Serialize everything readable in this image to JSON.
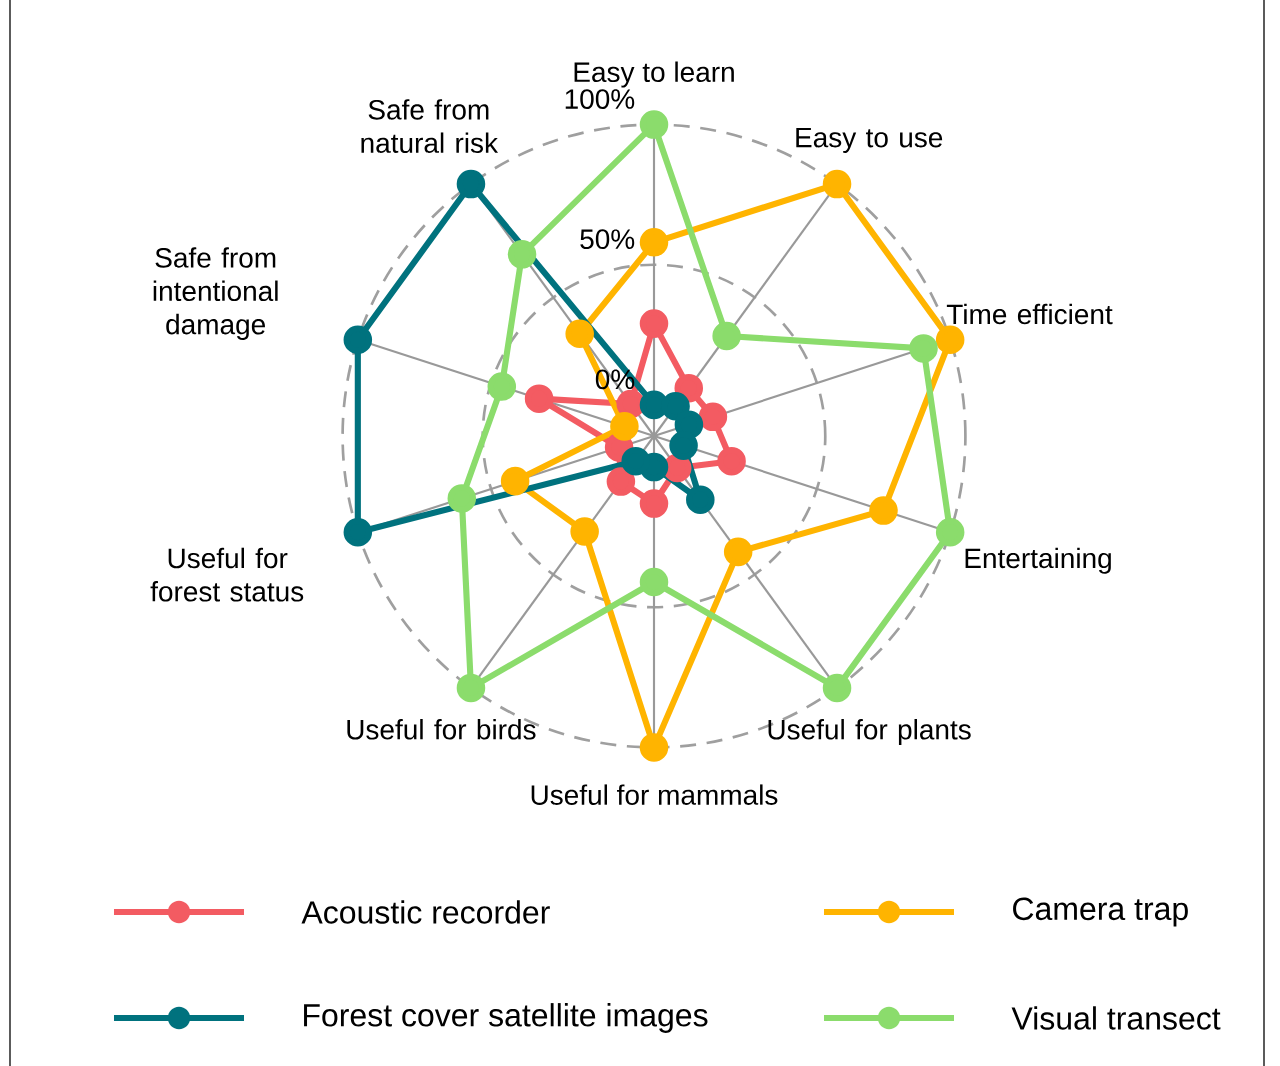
{
  "chart_data": {
    "type": "radar",
    "categories": [
      "Easy to learn",
      "Easy to use",
      "Time efficient",
      "Entertaining",
      "Useful for plants",
      "Useful for mammals",
      "Useful for birds",
      "Useful for forest status",
      "Safe from intentional damage",
      "Safe from natural risk"
    ],
    "series": [
      {
        "name": "Acoustic recorder",
        "color": "#f35b62",
        "values": [
          29,
          10,
          11,
          18,
          3,
          13,
          9,
          2,
          32,
          3
        ]
      },
      {
        "name": "Camera trap",
        "color": "#ffb400",
        "values": [
          58,
          100,
          100,
          75,
          40,
          100,
          31,
          41,
          0,
          34
        ]
      },
      {
        "name": "Forest cover satellite images",
        "color": "#00727e",
        "values": [
          0,
          2,
          2,
          0,
          17,
          0,
          0,
          100,
          100,
          100
        ]
      },
      {
        "name": "Visual transect",
        "color": "#8bdc6c",
        "values": [
          100,
          33,
          90,
          100,
          100,
          41,
          100,
          61,
          46,
          69
        ]
      }
    ],
    "ylim": [
      -11.1,
      100
    ],
    "yticks": [
      {
        "value": 0,
        "label": "0%"
      },
      {
        "value": 50,
        "label": "50%"
      },
      {
        "value": 100,
        "label": "100%"
      }
    ],
    "grid": true,
    "legend": "bottom",
    "marker": "circle",
    "line_style": "solid"
  }
}
